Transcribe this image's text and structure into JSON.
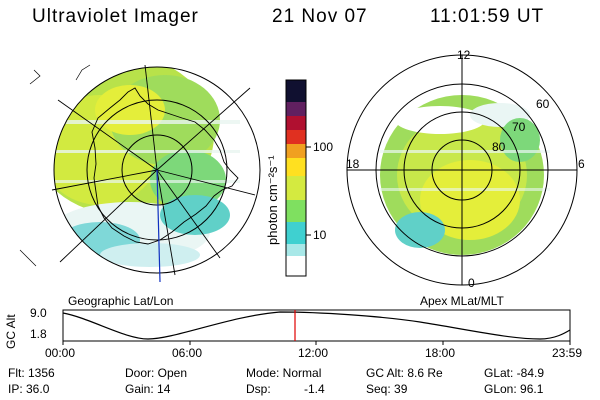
{
  "header": {
    "title": "Ultraviolet Imager",
    "date": "21 Nov 07",
    "time": "11:01:59 UT"
  },
  "left_panel": {
    "caption": "Geographic Lat/Lon"
  },
  "right_panel": {
    "caption": "Apex MLat/MLT",
    "mlt_labels": [
      "12",
      "18",
      "6",
      "0"
    ],
    "lat_labels": [
      "60",
      "70",
      "80"
    ]
  },
  "colorbar": {
    "unit_label": "photon cm⁻²s⁻¹",
    "ticks": [
      "100",
      "10"
    ],
    "scale": "log",
    "colors": [
      "#ffffff",
      "#3fd0d0",
      "#7fe060",
      "#d4ea40",
      "#ffe020",
      "#f0a020",
      "#e03020",
      "#b01030",
      "#602060",
      "#101030"
    ]
  },
  "altitude_plot": {
    "ylabel": "GC Alt",
    "yticks": [
      "9.0",
      "1.8"
    ],
    "xticks": [
      "00:00",
      "06:00",
      "12:00",
      "18:00",
      "23:59"
    ],
    "marker_time": "11:01:59",
    "marker_color": "#e00000"
  },
  "info": {
    "flt": "Flt: 1356",
    "ip": "IP: 36.0",
    "door": "Door: Open",
    "gain": "Gain: 14",
    "mode": "Mode: Normal",
    "dsp_label": "Dsp:",
    "dsp_value": "-1.4",
    "gc_alt": "GC Alt: 8.6 Re",
    "seq": "Seq: 39",
    "glat": "GLat: -84.9",
    "glon": "GLon: 96.1"
  }
}
